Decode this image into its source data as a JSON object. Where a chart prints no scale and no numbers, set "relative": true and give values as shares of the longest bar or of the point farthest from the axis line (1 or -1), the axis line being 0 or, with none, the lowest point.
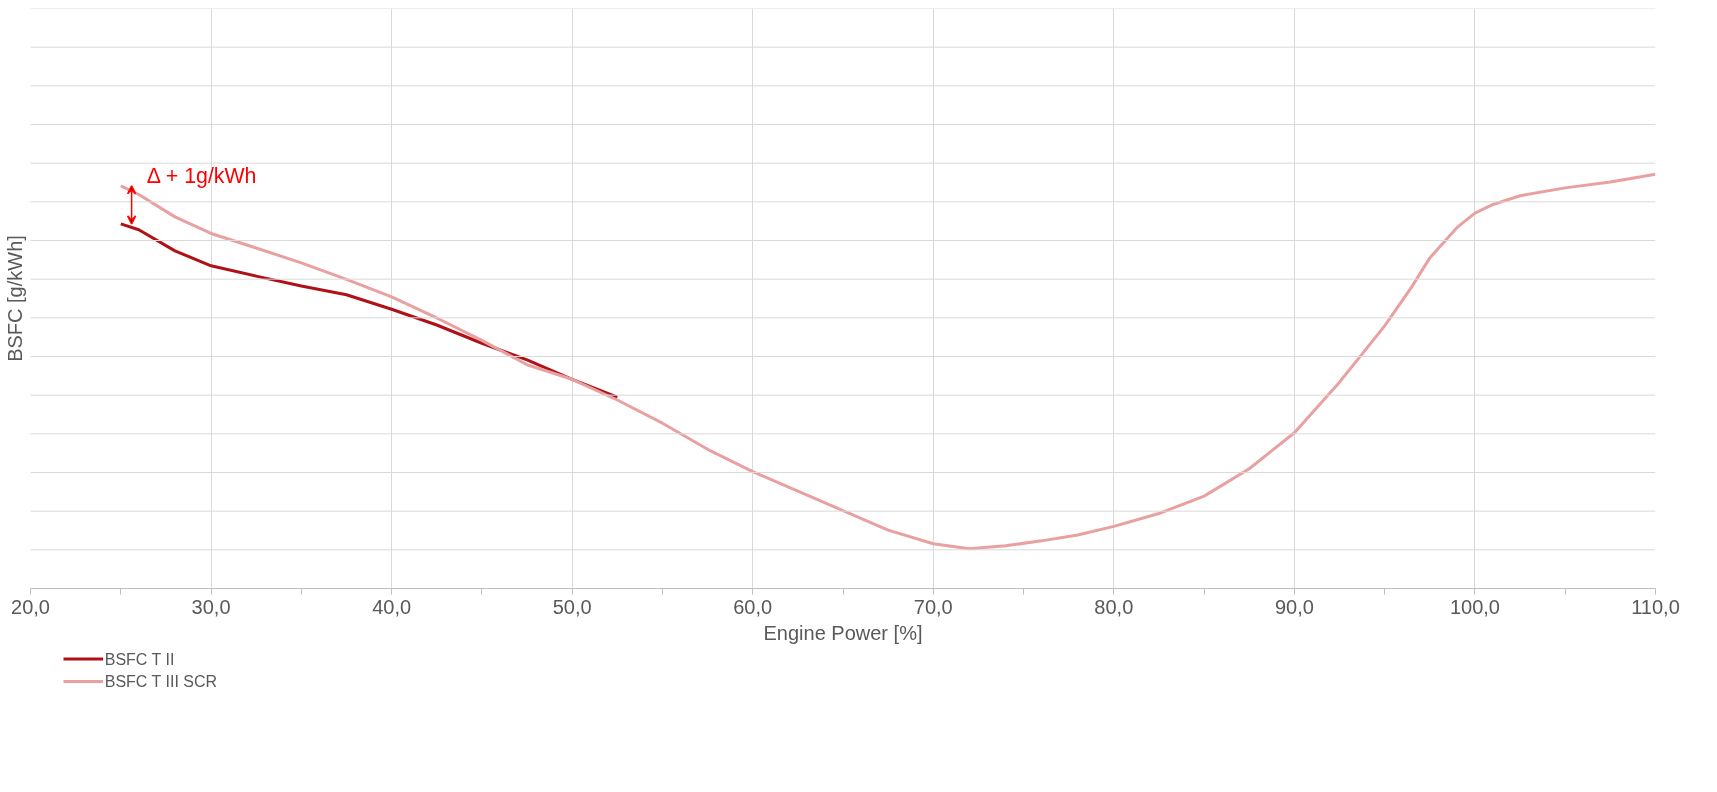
{
  "chart_data": {
    "type": "line",
    "relative": true,
    "xlabel": "Engine Power [%]",
    "ylabel": "BSFC [g/kWh]",
    "xlim": [
      20,
      110
    ],
    "xticks": [
      {
        "value": 20,
        "label": "20,0"
      },
      {
        "value": 30,
        "label": "30,0"
      },
      {
        "value": 40,
        "label": "40,0"
      },
      {
        "value": 50,
        "label": "50,0"
      },
      {
        "value": 60,
        "label": "60,0"
      },
      {
        "value": 70,
        "label": "70,0"
      },
      {
        "value": 80,
        "label": "80,0"
      },
      {
        "value": 90,
        "label": "90,0"
      },
      {
        "value": 100,
        "label": "100,0"
      },
      {
        "value": 110,
        "label": "110,0"
      }
    ],
    "grid": true,
    "legend": "bottom left",
    "line_style": "solid",
    "marker": "none",
    "annotations": [
      "Δ + 1g/kWh"
    ],
    "series": [
      {
        "name": "BSFC T II",
        "color": "#b01116",
        "x": [
          25,
          26,
          28,
          30,
          32.5,
          35,
          37.5,
          40,
          42.5,
          45,
          47.5,
          50,
          52.5
        ],
        "values": [
          0.88,
          0.866,
          0.815,
          0.779,
          0.754,
          0.73,
          0.709,
          0.674,
          0.636,
          0.592,
          0.552,
          0.505,
          0.462
        ]
      },
      {
        "name": "BSFC T III SCR",
        "color": "#e8a0a0",
        "x": [
          25,
          26,
          28,
          30,
          32.5,
          35,
          37.5,
          40,
          42.5,
          45,
          47.5,
          50,
          52.5,
          55,
          57.5,
          60,
          62.5,
          65,
          67.5,
          70,
          72,
          74,
          76,
          78,
          80,
          82.5,
          85,
          87.5,
          90,
          92.5,
          95,
          96.5,
          97.5,
          99,
          100,
          101,
          102.5,
          105,
          107.5,
          110
        ],
        "values": [
          0.972,
          0.951,
          0.897,
          0.857,
          0.822,
          0.786,
          0.746,
          0.704,
          0.653,
          0.599,
          0.54,
          0.505,
          0.455,
          0.399,
          0.336,
          0.282,
          0.235,
          0.188,
          0.141,
          0.108,
          0.096,
          0.103,
          0.115,
          0.129,
          0.15,
          0.181,
          0.223,
          0.289,
          0.376,
          0.498,
          0.634,
          0.728,
          0.798,
          0.871,
          0.906,
          0.927,
          0.948,
          0.967,
          0.981,
          1.0
        ]
      }
    ]
  }
}
